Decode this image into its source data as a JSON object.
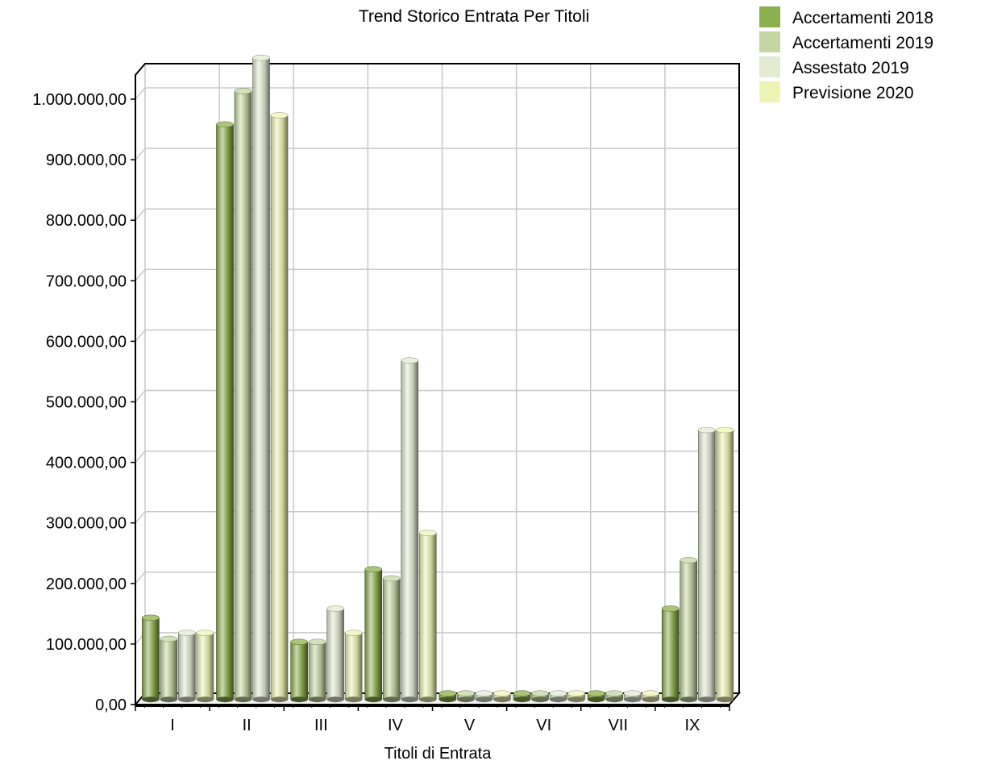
{
  "chart_data": {
    "type": "bar",
    "title": "Trend Storico Entrata Per Titoli",
    "xlabel": "Titoli di Entrata",
    "ylabel": "",
    "categories": [
      "I",
      "II",
      "III",
      "IV",
      "V",
      "VI",
      "VII",
      "IX"
    ],
    "y_ticks": [
      "0,00",
      "100.000,00",
      "200.000,00",
      "300.000,00",
      "400.000,00",
      "500.000,00",
      "600.000,00",
      "700.000,00",
      "800.000,00",
      "900.000,00",
      "1.000.000,00"
    ],
    "ylim": [
      0,
      1040000
    ],
    "grid": true,
    "legend_position": "top-right",
    "series": [
      {
        "name": "Accertamenti 2018",
        "color": "#8db04e",
        "values": [
          135000,
          950000,
          95000,
          215000,
          10000,
          10000,
          10000,
          150000
        ]
      },
      {
        "name": "Accertamenti 2019",
        "color": "#c5d6a2",
        "values": [
          100000,
          1005000,
          95000,
          200000,
          10000,
          10000,
          10000,
          230000
        ]
      },
      {
        "name": "Assestato 2019",
        "color": "#e3ebd2",
        "values": [
          110000,
          1060000,
          150000,
          560000,
          10000,
          10000,
          10000,
          445000
        ]
      },
      {
        "name": "Previsione 2020",
        "color": "#eef5b4",
        "values": [
          110000,
          965000,
          110000,
          275000,
          10000,
          10000,
          10000,
          445000
        ]
      }
    ]
  }
}
